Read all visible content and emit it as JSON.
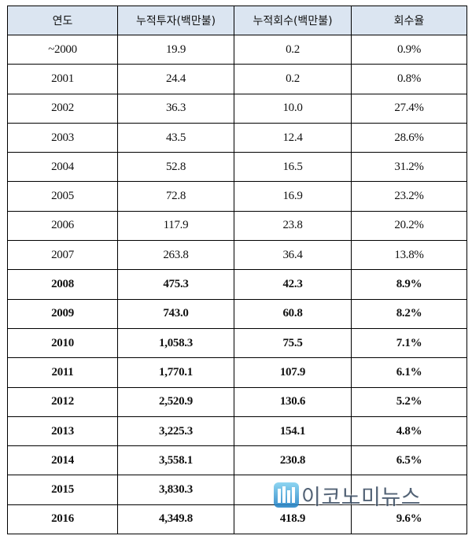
{
  "table": {
    "headers": [
      "연도",
      "누적투자(백만불)",
      "누적회수(백만불)",
      "회수율"
    ],
    "rows": [
      {
        "year": "~2000",
        "investment": "19.9",
        "recovery": "0.2",
        "rate": "0.9%",
        "bold": false
      },
      {
        "year": "2001",
        "investment": "24.4",
        "recovery": "0.2",
        "rate": "0.8%",
        "bold": false
      },
      {
        "year": "2002",
        "investment": "36.3",
        "recovery": "10.0",
        "rate": "27.4%",
        "bold": false
      },
      {
        "year": "2003",
        "investment": "43.5",
        "recovery": "12.4",
        "rate": "28.6%",
        "bold": false
      },
      {
        "year": "2004",
        "investment": "52.8",
        "recovery": "16.5",
        "rate": "31.2%",
        "bold": false
      },
      {
        "year": "2005",
        "investment": "72.8",
        "recovery": "16.9",
        "rate": "23.2%",
        "bold": false
      },
      {
        "year": "2006",
        "investment": "117.9",
        "recovery": "23.8",
        "rate": "20.2%",
        "bold": false
      },
      {
        "year": "2007",
        "investment": "263.8",
        "recovery": "36.4",
        "rate": "13.8%",
        "bold": false
      },
      {
        "year": "2008",
        "investment": "475.3",
        "recovery": "42.3",
        "rate": "8.9%",
        "bold": true
      },
      {
        "year": "2009",
        "investment": "743.0",
        "recovery": "60.8",
        "rate": "8.2%",
        "bold": true
      },
      {
        "year": "2010",
        "investment": "1,058.3",
        "recovery": "75.5",
        "rate": "7.1%",
        "bold": true
      },
      {
        "year": "2011",
        "investment": "1,770.1",
        "recovery": "107.9",
        "rate": "6.1%",
        "bold": true
      },
      {
        "year": "2012",
        "investment": "2,520.9",
        "recovery": "130.6",
        "rate": "5.2%",
        "bold": true
      },
      {
        "year": "2013",
        "investment": "3,225.3",
        "recovery": "154.1",
        "rate": "4.8%",
        "bold": true
      },
      {
        "year": "2014",
        "investment": "3,558.1",
        "recovery": "230.8",
        "rate": "6.5%",
        "bold": true
      },
      {
        "year": "2015",
        "investment": "3,830.3",
        "recovery": "",
        "rate": "",
        "bold": true
      },
      {
        "year": "2016",
        "investment": "4,349.8",
        "recovery": "418.9",
        "rate": "9.6%",
        "bold": true
      }
    ]
  },
  "watermark": {
    "text": "이코노미뉴스",
    "logo_icon": "economynews-logo-icon"
  },
  "colors": {
    "header_bg": "#dbe5f1",
    "border": "#000000",
    "watermark": "#3b4d63"
  }
}
